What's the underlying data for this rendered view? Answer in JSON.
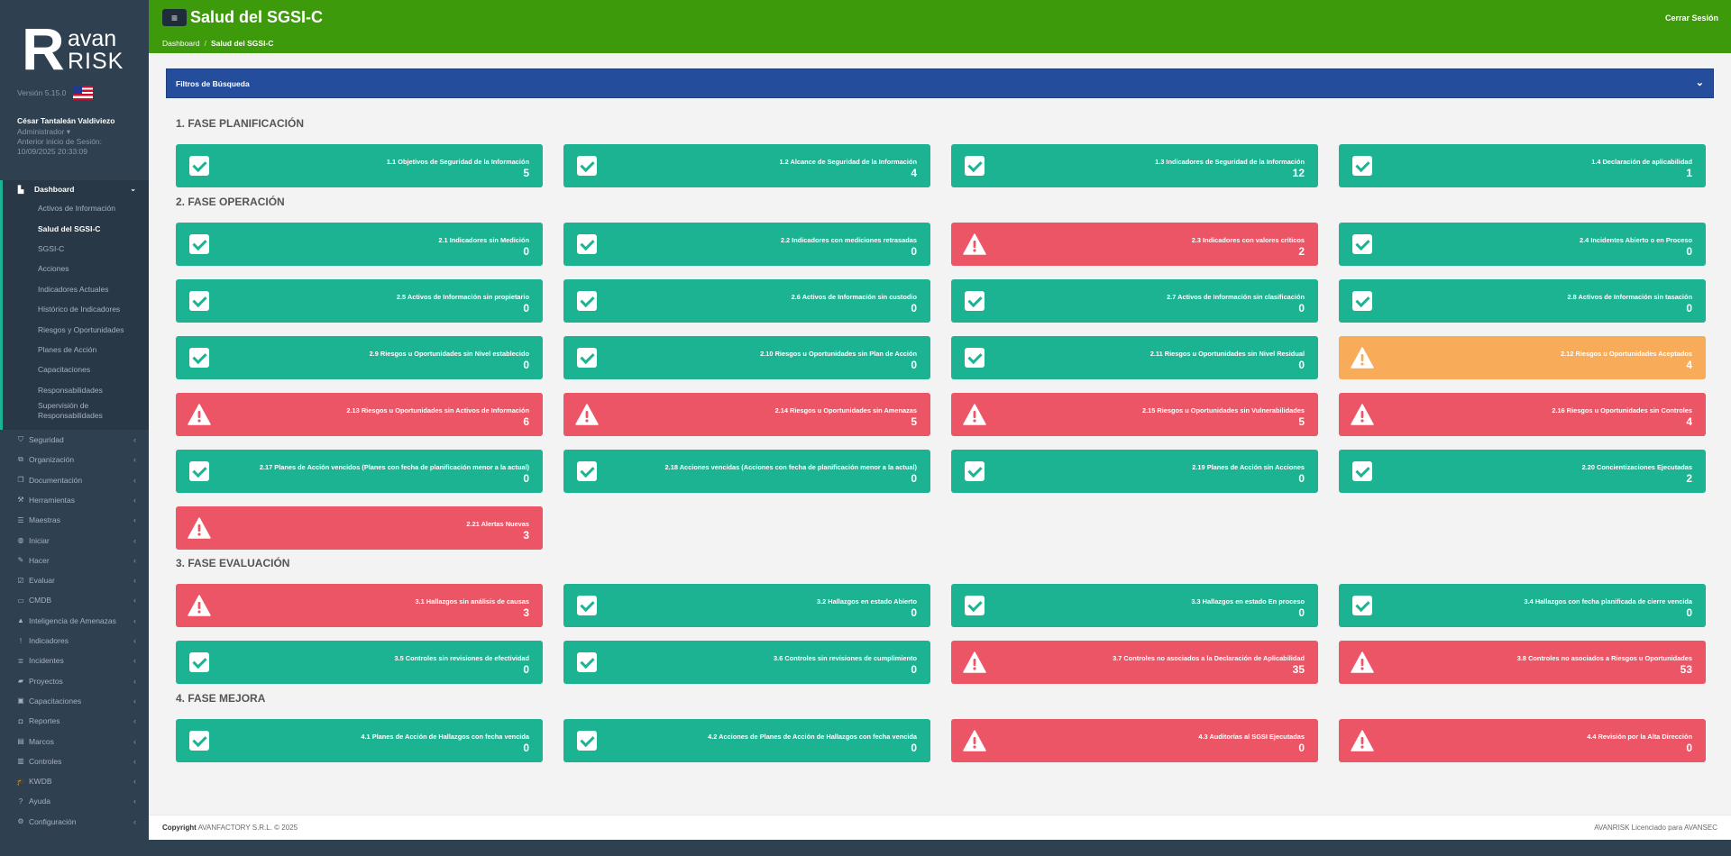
{
  "brand": {
    "r": "R",
    "avan": "avan",
    "risk": "RISK"
  },
  "sidebar": {
    "version": "Versión 5.15.0",
    "user_name": "César Tantaleán Valdiviezo",
    "user_role": "Administrador ▾",
    "last_login_label": "Anterior inicio de Sesión:",
    "last_login_date": "10/09/2025 20:33:09",
    "dashboard": {
      "label": "Dashboard",
      "items": [
        "Activos de Información",
        "Salud del SGSI-C",
        "SGSI-C",
        "Acciones",
        "Indicadores Actuales",
        "Histórico de Indicadores",
        "Riesgos y Oportunidades",
        "Planes de Acción",
        "Capacitaciones",
        "Responsabilidades",
        "Supervisión de Responsabilidades"
      ]
    },
    "menu": [
      {
        "label": "Seguridad",
        "icon": "shield-icon"
      },
      {
        "label": "Organización",
        "icon": "sitemap-icon"
      },
      {
        "label": "Documentación",
        "icon": "documents-icon"
      },
      {
        "label": "Herramientas",
        "icon": "tools-icon"
      },
      {
        "label": "Maestras",
        "icon": "list-icon"
      },
      {
        "label": "Iniciar",
        "icon": "globe-icon"
      },
      {
        "label": "Hacer",
        "icon": "edit-icon"
      },
      {
        "label": "Evaluar",
        "icon": "check-square-icon"
      },
      {
        "label": "CMDB",
        "icon": "desktop-icon"
      },
      {
        "label": "Inteligencia de Amenazas",
        "icon": "warning-icon"
      },
      {
        "label": "Indicadores",
        "icon": "exclamation-icon"
      },
      {
        "label": "Incidentes",
        "icon": "database-icon"
      },
      {
        "label": "Proyectos",
        "icon": "folder-icon"
      },
      {
        "label": "Capacitaciones",
        "icon": "briefcase-icon"
      },
      {
        "label": "Reportes",
        "icon": "car-icon"
      },
      {
        "label": "Marcos",
        "icon": "box-icon"
      },
      {
        "label": "Controles",
        "icon": "bag-icon"
      },
      {
        "label": "KWDB",
        "icon": "graduation-icon"
      },
      {
        "label": "Ayuda",
        "icon": "question-icon"
      },
      {
        "label": "Configuración",
        "icon": "gear-icon"
      }
    ]
  },
  "header": {
    "menu_icon": "≡",
    "title": "Salud del SGSI-C",
    "logout": "Cerrar Sesión",
    "breadcrumb": [
      "Dashboard",
      "Salud del SGSI-C"
    ]
  },
  "filters": {
    "label": "Filtros de Búsqueda"
  },
  "phases": [
    {
      "title": "1. FASE PLANIFICACIÓN",
      "cards": [
        {
          "label": "1.1 Objetivos de Seguridad de la Información",
          "value": "5",
          "status": "ok"
        },
        {
          "label": "1.2 Alcance de Seguridad de la Información",
          "value": "4",
          "status": "ok"
        },
        {
          "label": "1.3 Indicadores de Seguridad de la Información",
          "value": "12",
          "status": "ok"
        },
        {
          "label": "1.4 Declaración de aplicabilidad",
          "value": "1",
          "status": "ok"
        }
      ]
    },
    {
      "title": "2. FASE OPERACIÓN",
      "cards": [
        {
          "label": "2.1 Indicadores sin Medición",
          "value": "0",
          "status": "ok"
        },
        {
          "label": "2.2 Indicadores con mediciones retrasadas",
          "value": "0",
          "status": "ok"
        },
        {
          "label": "2.3 Indicadores con valores críticos",
          "value": "2",
          "status": "danger"
        },
        {
          "label": "2.4 Incidentes Abierto o en Proceso",
          "value": "0",
          "status": "ok"
        },
        {
          "label": "2.5 Activos de Información sin propietario",
          "value": "0",
          "status": "ok"
        },
        {
          "label": "2.6 Activos de Información sin custodio",
          "value": "0",
          "status": "ok"
        },
        {
          "label": "2.7 Activos de Información sin clasificación",
          "value": "0",
          "status": "ok"
        },
        {
          "label": "2.8 Activos de Información sin tasación",
          "value": "0",
          "status": "ok"
        },
        {
          "label": "2.9 Riesgos u Oportunidades sin Nivel establecido",
          "value": "0",
          "status": "ok"
        },
        {
          "label": "2.10 Riesgos u Oportunidades sin Plan de Acción",
          "value": "0",
          "status": "ok"
        },
        {
          "label": "2.11 Riesgos u Oportunidades sin Nivel Residual",
          "value": "0",
          "status": "ok"
        },
        {
          "label": "2.12 Riesgos u Oportunidades Aceptados",
          "value": "4",
          "status": "warning"
        },
        {
          "label": "2.13 Riesgos u Oportunidades sin Activos de Información",
          "value": "6",
          "status": "danger"
        },
        {
          "label": "2.14 Riesgos u Oportunidades sin Amenazas",
          "value": "5",
          "status": "danger"
        },
        {
          "label": "2.15 Riesgos u Oportunidades sin Vulnerabilidades",
          "value": "5",
          "status": "danger"
        },
        {
          "label": "2.16 Riesgos u Oportunidades sin Controles",
          "value": "4",
          "status": "danger"
        },
        {
          "label": "2.17 Planes de Acción vencidos (Planes con fecha de planificación menor a la actual)",
          "value": "0",
          "status": "ok"
        },
        {
          "label": "2.18 Acciones vencidas (Acciones con fecha de planificación menor a la actual)",
          "value": "0",
          "status": "ok"
        },
        {
          "label": "2.19 Planes de Acción sin Acciones",
          "value": "0",
          "status": "ok"
        },
        {
          "label": "2.20 Concientizaciones Ejecutadas",
          "value": "2",
          "status": "ok"
        },
        {
          "label": "2.21 Alertas Nuevas",
          "value": "3",
          "status": "danger"
        }
      ]
    },
    {
      "title": "3. FASE EVALUACIÓN",
      "cards": [
        {
          "label": "3.1 Hallazgos sin análisis de causas",
          "value": "3",
          "status": "danger"
        },
        {
          "label": "3.2 Hallazgos en estado Abierto",
          "value": "0",
          "status": "ok"
        },
        {
          "label": "3.3 Hallazgos en estado En proceso",
          "value": "0",
          "status": "ok"
        },
        {
          "label": "3.4 Hallazgos con fecha planificada de cierre vencida",
          "value": "0",
          "status": "ok"
        },
        {
          "label": "3.5 Controles sin revisiones de efectividad",
          "value": "0",
          "status": "ok"
        },
        {
          "label": "3.6 Controles sin revisiones de cumplimiento",
          "value": "0",
          "status": "ok"
        },
        {
          "label": "3.7 Controles no asociados a la Declaración de Aplicabilidad",
          "value": "35",
          "status": "danger"
        },
        {
          "label": "3.8 Controles no asociados a Riesgos u Oportunidades",
          "value": "53",
          "status": "danger"
        }
      ]
    },
    {
      "title": "4. FASE MEJORA",
      "cards": [
        {
          "label": "4.1 Planes de Acción de Hallazgos con fecha vencida",
          "value": "0",
          "status": "ok"
        },
        {
          "label": "4.2 Acciones de Planes de Acción de Hallazgos con fecha vencida",
          "value": "0",
          "status": "ok"
        },
        {
          "label": "4.3 Auditorías al SGSI Ejecutadas",
          "value": "0",
          "status": "danger"
        },
        {
          "label": "4.4 Revisión por la Alta Dirección",
          "value": "0",
          "status": "danger"
        }
      ]
    }
  ],
  "footer": {
    "copyright_bold": "Copyright",
    "copyright_rest": " AVANFACTORY S.R.L. © 2025",
    "license": "AVANRISK Licenciado para AVANSEC"
  },
  "colors": {
    "ok": "#1cb393",
    "danger": "#ec5565",
    "warning": "#f8ac59",
    "topbar": "#3d9a0a",
    "filters": "#244e9c",
    "sidebar": "#2f4050"
  }
}
